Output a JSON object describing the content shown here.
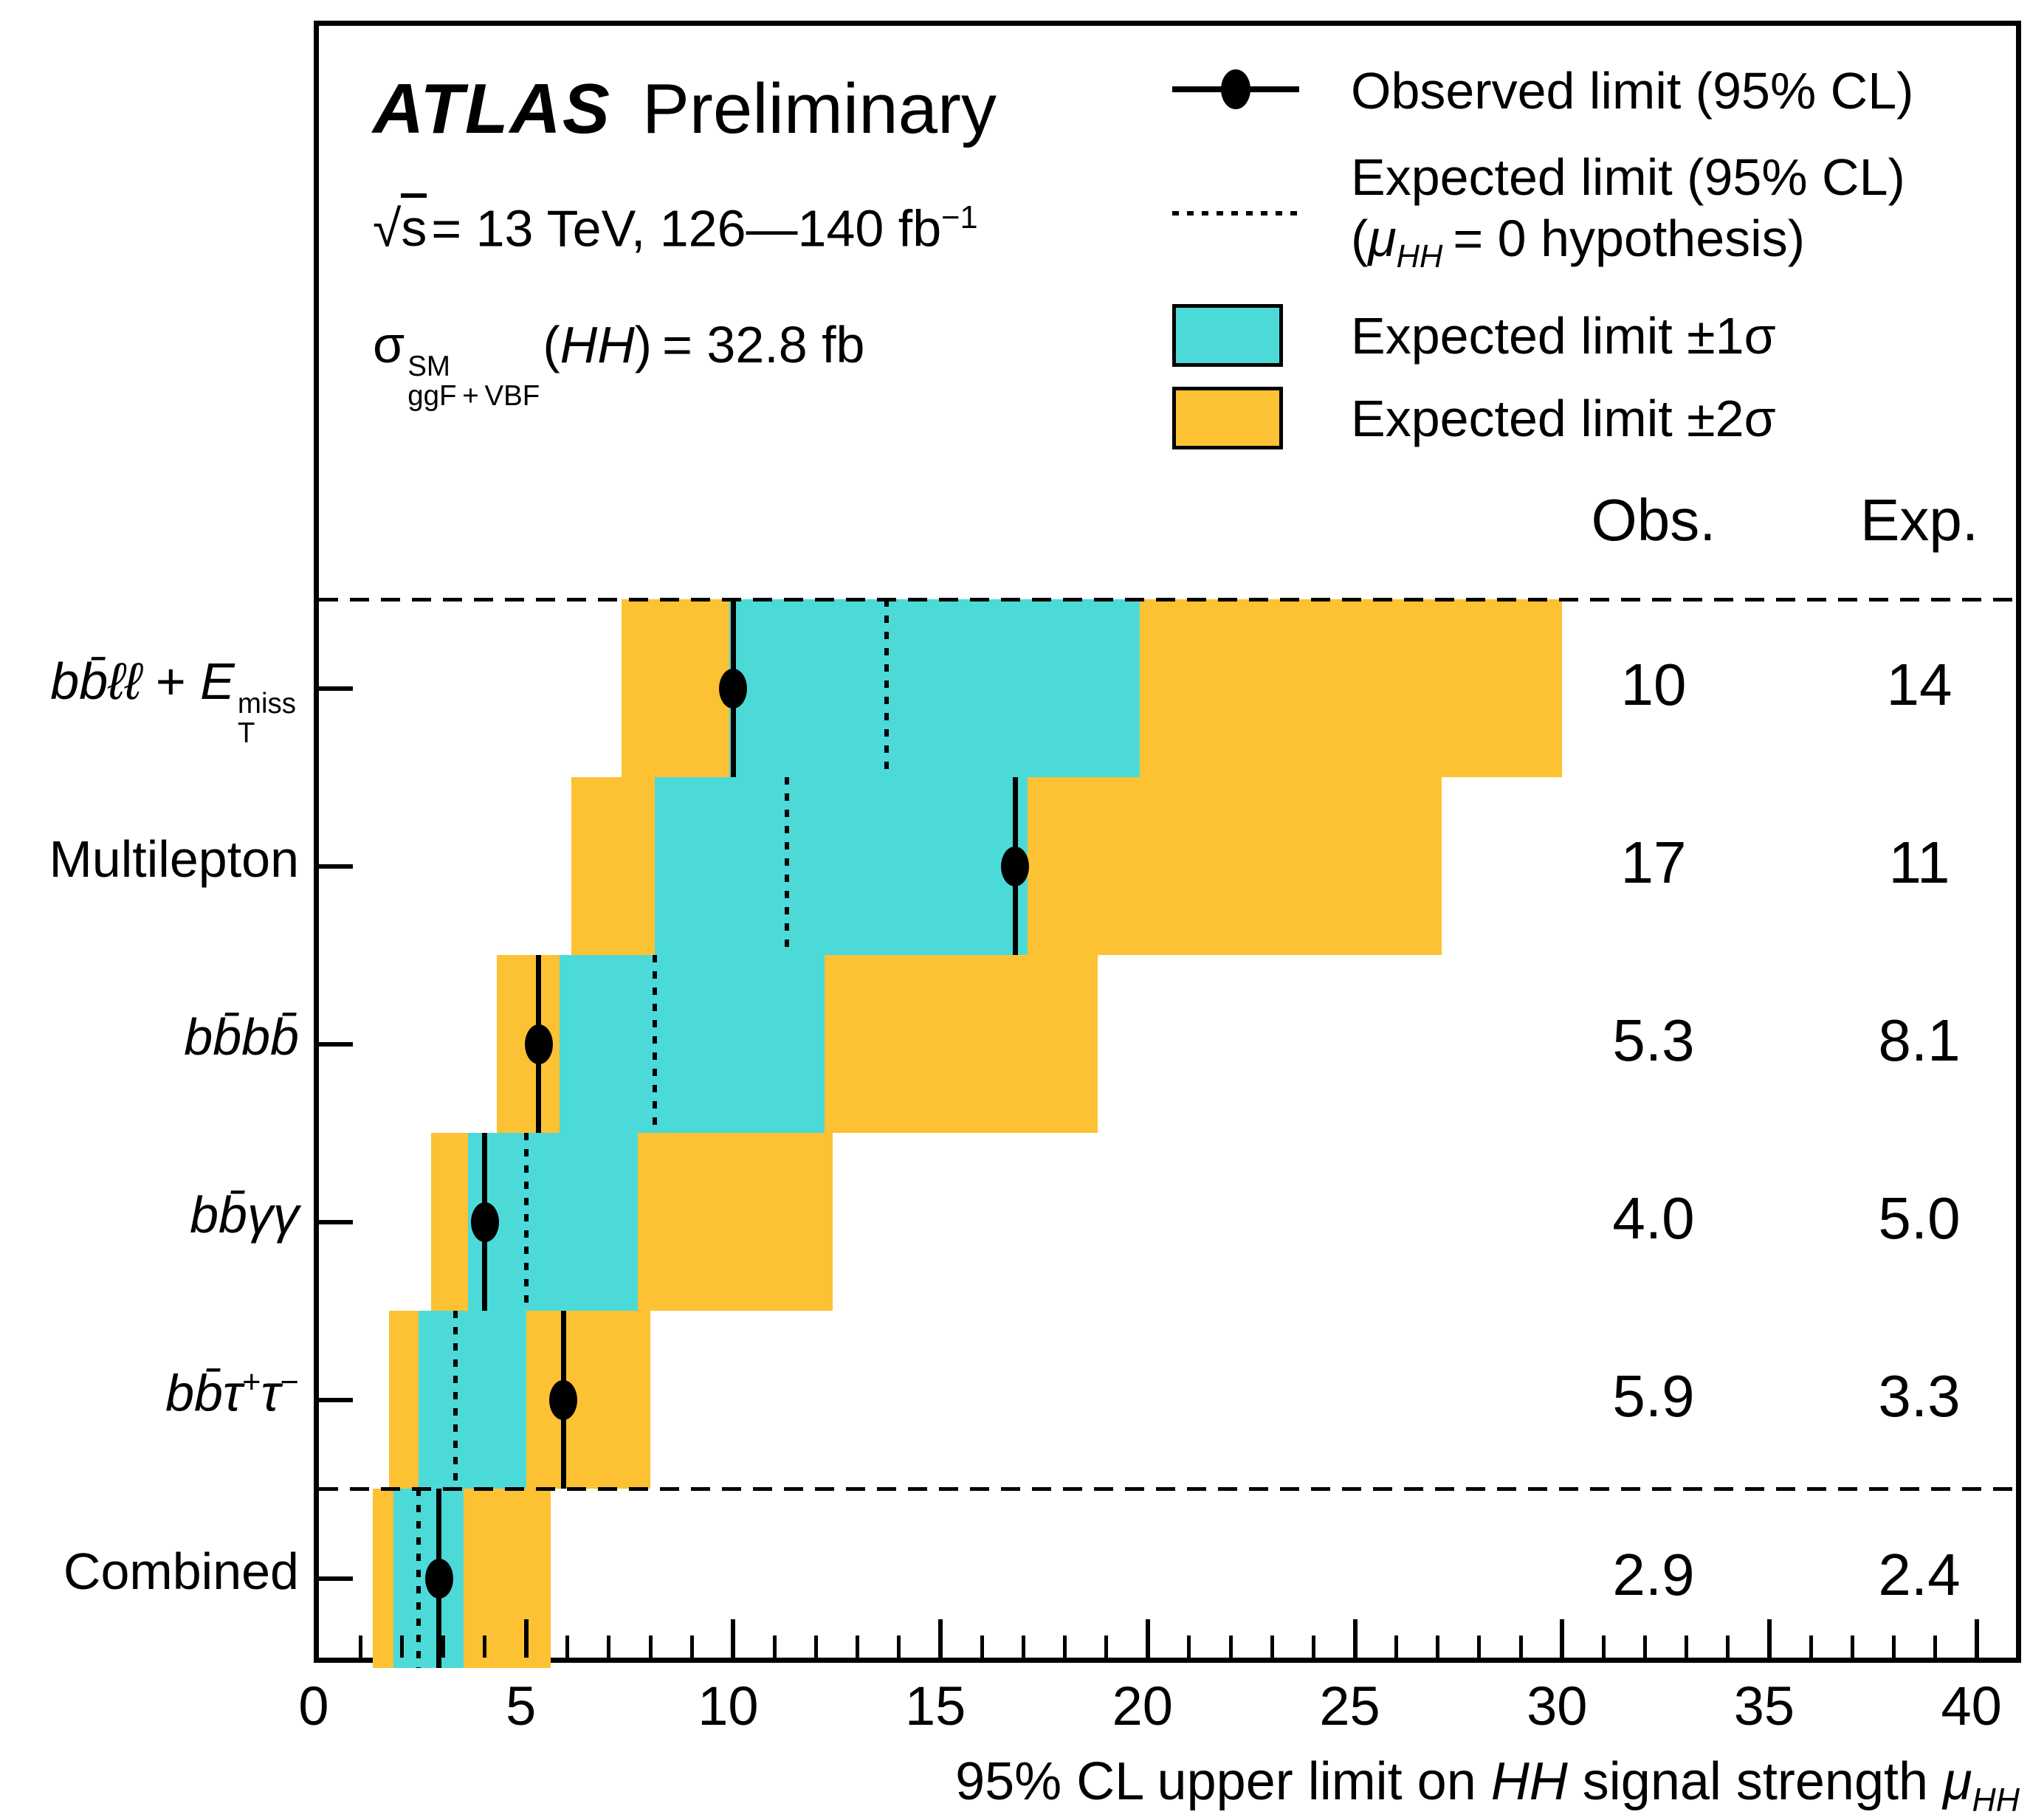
{
  "header": {
    "experiment": "ATLAS",
    "status": "Preliminary",
    "sqrts_html": "<span data-name=\"sqrt-symbol\">&#8730;</span><span class=\"ol\">s</span>&#8202;= 13 TeV, 126&#8212;140 fb<sup>&#8722;1</sup>",
    "xsec_html": "&#963;<span class=\"stack\"><span class=\"st\">SM</span><span class=\"sb\">ggF&#8201;+&#8201;VBF</span></span>(<i>HH</i>)&#8201;= 32.8 fb"
  },
  "legend": {
    "observed_label": "Observed limit (95% CL)",
    "expected_label_line1": "Expected limit (95% CL)",
    "expected_label_line2_html": "(<i>&#956;<sub>HH</sub></i>&#8201;= 0 hypothesis)",
    "band1_label": "Expected limit &#177;1&#963;",
    "band2_label": "Expected limit &#177;2&#963;"
  },
  "columns": {
    "obs": "Obs.",
    "exp": "Exp."
  },
  "colors": {
    "band_1sigma": "#4CDAD8",
    "band_2sigma": "#FCC233",
    "line": "#000000",
    "background": "#FFFFFF"
  },
  "chart_data": {
    "type": "bar",
    "subtype": "horizontal-limit-brazil-bands",
    "title": "ATLAS Preliminary HH combination",
    "xlabel_html": "95% CL upper limit on <i>HH</i> signal strength <i>&#956;<sub>HH</sub></i>",
    "xlim": [
      0,
      41.2
    ],
    "xticks": [
      0,
      5,
      10,
      15,
      20,
      25,
      30,
      35,
      40
    ],
    "minor_tick_step": 1,
    "grid": false,
    "legend_position": "top-right",
    "categories": [
      "bbll+ETmiss",
      "Multilepton",
      "bbbb",
      "bbyy",
      "bbtautau",
      "Combined"
    ],
    "rows": [
      {
        "label_html": "<i>bb&#772;&#8467;&#8467;</i> + <i>E</i><span class=\"stack\" style=\"vertical-align:-0.5em\"><span class=\"st\">miss</span><span class=\"sb\">T</span></span>",
        "minus2": 7.3,
        "minus1": 9.9,
        "expected": 13.7,
        "plus1": 19.8,
        "plus2": 30.0,
        "observed": 10.0,
        "obs_label": "10",
        "exp_label": "14"
      },
      {
        "label_html": "Multilepton",
        "minus2": 6.1,
        "minus1": 8.1,
        "expected": 11.3,
        "plus1": 17.1,
        "plus2": 27.1,
        "observed": 16.8,
        "obs_label": "17",
        "exp_label": "11"
      },
      {
        "label_html": "<i>bb&#772;bb&#772;</i>",
        "minus2": 4.3,
        "minus1": 5.8,
        "expected": 8.1,
        "plus1": 12.2,
        "plus2": 18.8,
        "observed": 5.3,
        "obs_label": "5.3",
        "exp_label": "8.1"
      },
      {
        "label_html": "<i>bb&#772;&#947;&#947;</i>",
        "minus2": 2.7,
        "minus1": 3.6,
        "expected": 5.0,
        "plus1": 7.7,
        "plus2": 12.4,
        "observed": 4.0,
        "obs_label": "4.0",
        "exp_label": "5.0"
      },
      {
        "label_html": "<i>bb&#772;&#964;</i><sup>+</sup><i>&#964;</i><sup>&#8722;</sup>",
        "minus2": 1.7,
        "minus1": 2.4,
        "expected": 3.3,
        "plus1": 5.0,
        "plus2": 8.0,
        "observed": 5.9,
        "obs_label": "5.9",
        "exp_label": "3.3"
      },
      {
        "label_html": "Combined",
        "minus2": 1.3,
        "minus1": 1.8,
        "expected": 2.4,
        "plus1": 3.5,
        "plus2": 5.6,
        "observed": 2.9,
        "obs_label": "2.9",
        "exp_label": "2.4"
      }
    ]
  }
}
